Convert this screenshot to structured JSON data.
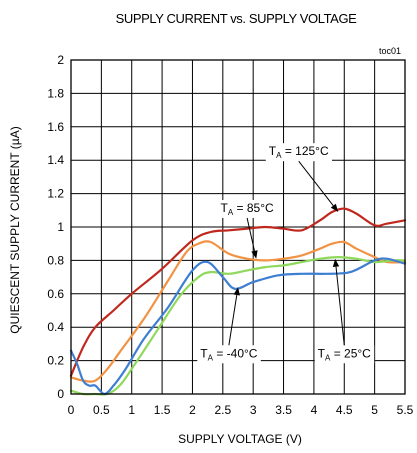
{
  "chart_data": {
    "type": "line",
    "title": "SUPPLY CURRENT vs. SUPPLY VOLTAGE",
    "note": "toc01",
    "xlabel": "SUPPLY VOLTAGE (V)",
    "ylabel": "QUIESCENT SUPPLY CURRENT (µA)",
    "xlim": [
      0,
      5.5
    ],
    "ylim": [
      0,
      2
    ],
    "xticks": [
      0,
      0.5,
      1,
      1.5,
      2,
      2.5,
      3,
      3.5,
      4,
      4.5,
      5,
      5.5
    ],
    "xtick_labels": [
      "0",
      "0.5",
      "1",
      "1.5",
      "2",
      "2.5",
      "3",
      "3.5",
      "4",
      "4.5",
      "5",
      "5.5"
    ],
    "yticks": [
      0,
      0.2,
      0.4,
      0.6,
      0.8,
      1,
      1.2,
      1.4,
      1.6,
      1.8,
      2
    ],
    "ytick_labels": [
      "0",
      "0.2",
      "0.4",
      "0.6",
      "0.8",
      "1",
      "1.2",
      "1.4",
      "1.6",
      "1.8",
      "2"
    ],
    "grid": true,
    "series": [
      {
        "name": "TA = 125°C",
        "color": "#c0281e",
        "x": [
          0,
          0.2,
          0.4,
          0.7,
          1.0,
          1.5,
          2.0,
          2.3,
          2.6,
          2.9,
          3.2,
          3.5,
          3.8,
          4.1,
          4.3,
          4.5,
          4.7,
          5.0,
          5.2,
          5.5
        ],
        "y": [
          0.11,
          0.28,
          0.4,
          0.5,
          0.6,
          0.75,
          0.92,
          0.97,
          0.98,
          0.99,
          1.0,
          0.99,
          0.98,
          1.04,
          1.09,
          1.11,
          1.08,
          1.01,
          1.02,
          1.04
        ]
      },
      {
        "name": "TA = 85°C",
        "color": "#f29243",
        "x": [
          0,
          0.2,
          0.4,
          0.6,
          0.8,
          1.2,
          1.6,
          1.9,
          2.1,
          2.3,
          2.6,
          2.9,
          3.2,
          3.5,
          3.8,
          4.1,
          4.3,
          4.5,
          4.7,
          5.0,
          5.2,
          5.5
        ],
        "y": [
          0.1,
          0.08,
          0.08,
          0.15,
          0.25,
          0.45,
          0.68,
          0.85,
          0.9,
          0.91,
          0.84,
          0.81,
          0.8,
          0.81,
          0.83,
          0.87,
          0.9,
          0.91,
          0.87,
          0.82,
          0.79,
          0.79
        ]
      },
      {
        "name": "TA = 25°C",
        "color": "#8fd85c",
        "x": [
          0,
          0.2,
          0.4,
          0.6,
          0.8,
          1.0,
          1.4,
          1.8,
          2.1,
          2.3,
          2.6,
          2.9,
          3.2,
          3.5,
          3.8,
          4.1,
          4.4,
          4.7,
          5.0,
          5.3,
          5.5
        ],
        "y": [
          0.02,
          0.0,
          0.0,
          0.0,
          0.05,
          0.15,
          0.37,
          0.59,
          0.7,
          0.73,
          0.72,
          0.74,
          0.76,
          0.77,
          0.79,
          0.81,
          0.82,
          0.81,
          0.79,
          0.8,
          0.8
        ]
      },
      {
        "name": "TA = -40°C",
        "color": "#3f7fd2",
        "x": [
          0,
          0.1,
          0.2,
          0.3,
          0.4,
          0.55,
          0.7,
          0.9,
          1.2,
          1.6,
          2.0,
          2.25,
          2.5,
          2.7,
          3.0,
          3.4,
          3.8,
          4.2,
          4.6,
          5.0,
          5.2,
          5.5
        ],
        "y": [
          0.26,
          0.18,
          0.08,
          0.05,
          0.05,
          0.0,
          0.05,
          0.15,
          0.33,
          0.52,
          0.74,
          0.79,
          0.7,
          0.63,
          0.67,
          0.71,
          0.72,
          0.72,
          0.73,
          0.8,
          0.81,
          0.78
        ]
      }
    ],
    "annotations": [
      {
        "base": "T",
        "sub": "A",
        "rest": " = 125°C",
        "x": 3.75,
        "y": 1.43,
        "arrow_to": [
          4.4,
          1.09
        ]
      },
      {
        "base": "T",
        "sub": "A",
        "rest": " = 85°C",
        "x": 2.9,
        "y": 1.09,
        "arrow_to": [
          3.05,
          0.81
        ]
      },
      {
        "base": "T",
        "sub": "A",
        "rest": " = -40°C",
        "x": 2.6,
        "y": 0.22,
        "arrow_to": [
          2.75,
          0.64
        ]
      },
      {
        "base": "T",
        "sub": "A",
        "rest": " = 25°C",
        "x": 4.5,
        "y": 0.22,
        "arrow_to": [
          4.35,
          0.81
        ]
      }
    ]
  }
}
